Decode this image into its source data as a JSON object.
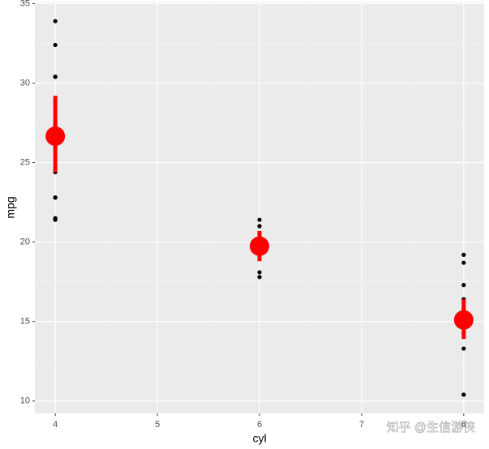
{
  "chart_data": {
    "type": "scatter",
    "x_label": "cyl",
    "y_label": "mpg",
    "xlim": [
      3.8,
      8.2
    ],
    "xticks": [
      4,
      5,
      6,
      7,
      8
    ],
    "ylim": [
      9.225,
      35.075
    ],
    "yticks": [
      10,
      15,
      20,
      25,
      30,
      35
    ],
    "grid": true,
    "points": {
      "color": "#000000",
      "x": [
        4,
        4,
        4,
        4,
        4,
        4,
        4,
        4,
        4,
        4,
        4,
        6,
        6,
        6,
        6,
        6,
        6,
        6,
        8,
        8,
        8,
        8,
        8,
        8,
        8,
        8,
        8,
        8,
        8,
        8,
        8,
        8
      ],
      "values": [
        22.8,
        24.4,
        22.8,
        32.4,
        30.4,
        33.9,
        21.5,
        27.3,
        26,
        30.4,
        21.4,
        21,
        21,
        21.4,
        18.1,
        19.2,
        17.8,
        19.7,
        18.7,
        14.3,
        16.4,
        17.3,
        15.2,
        10.4,
        10.4,
        14.7,
        15.5,
        15.2,
        13.3,
        19.2,
        15.8,
        15
      ]
    },
    "summary": {
      "color": "#ff0000",
      "x": [
        4,
        6,
        8
      ],
      "values": [
        26.66,
        19.74,
        15.1
      ],
      "ymin": [
        24.4,
        18.8,
        13.9
      ],
      "ymax": [
        29.2,
        20.7,
        16.4
      ]
    },
    "watermark": "知乎 @生信游侠"
  }
}
